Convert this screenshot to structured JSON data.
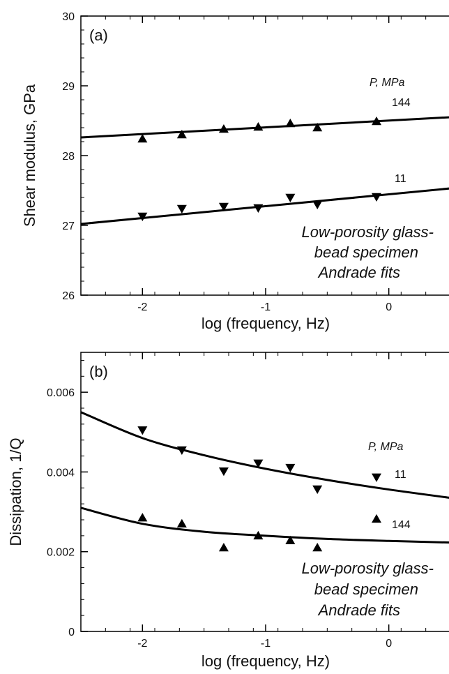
{
  "chart_data": [
    {
      "type": "scatter",
      "panel_label": "(a)",
      "xlabel": "log (frequency, Hz)",
      "ylabel": "Shear modulus, GPa",
      "xlim": [
        -2.5,
        0.5
      ],
      "ylim": [
        26,
        30
      ],
      "xticks": [
        -2,
        -1,
        0
      ],
      "xtick_labels": [
        "-2",
        "-1",
        "0"
      ],
      "yticks": [
        26,
        27,
        28,
        29,
        30
      ],
      "ytick_labels": [
        "26",
        "27",
        "28",
        "29",
        "30"
      ],
      "pressure_heading": "P, MPa",
      "annotation_lines": [
        "Low-porosity glass-",
        "bead specimen",
        "Andrade fits"
      ],
      "series": [
        {
          "name": "144",
          "marker": "triangle-up",
          "x": [
            -2.0,
            -1.68,
            -1.34,
            -1.06,
            -0.8,
            -0.58,
            -0.1
          ],
          "y": [
            28.24,
            28.3,
            28.38,
            28.41,
            28.46,
            28.4,
            28.49
          ],
          "fit": {
            "x": [
              -2.5,
              0.5
            ],
            "y": [
              28.26,
              28.55
            ]
          }
        },
        {
          "name": "11",
          "marker": "triangle-down",
          "x": [
            -2.0,
            -1.68,
            -1.34,
            -1.06,
            -0.8,
            -0.58,
            -0.1
          ],
          "y": [
            27.13,
            27.24,
            27.27,
            27.25,
            27.4,
            27.3,
            27.41
          ],
          "fit": {
            "x": [
              -2.5,
              0.5
            ],
            "y": [
              27.02,
              27.53
            ]
          }
        }
      ]
    },
    {
      "type": "scatter",
      "panel_label": "(b)",
      "xlabel": "log (frequency, Hz)",
      "ylabel": "Dissipation, 1/Q",
      "xlim": [
        -2.5,
        0.5
      ],
      "ylim": [
        0,
        0.007
      ],
      "xticks": [
        -2,
        -1,
        0
      ],
      "xtick_labels": [
        "-2",
        "-1",
        "0"
      ],
      "yticks": [
        0,
        0.002,
        0.004,
        0.006
      ],
      "ytick_labels": [
        "0",
        "0.002",
        "0.004",
        "0.006"
      ],
      "pressure_heading": "P, MPa",
      "annotation_lines": [
        "Low-porosity glass-",
        "bead specimen",
        "Andrade fits"
      ],
      "series": [
        {
          "name": "11",
          "marker": "triangle-down",
          "x": [
            -2.0,
            -1.68,
            -1.34,
            -1.06,
            -0.8,
            -0.58,
            -0.1
          ],
          "y": [
            0.00505,
            0.00455,
            0.00402,
            0.00422,
            0.00411,
            0.00357,
            0.00387
          ],
          "fit": {
            "x": [
              -2.5,
              -2.0,
              -1.5,
              -1.0,
              -0.5,
              0.0,
              0.5
            ],
            "y": [
              0.0055,
              0.00485,
              0.00442,
              0.00408,
              0.0038,
              0.00356,
              0.00335
            ]
          }
        },
        {
          "name": "144",
          "marker": "triangle-up",
          "x": [
            -2.0,
            -1.68,
            -1.34,
            -1.06,
            -0.8,
            -0.58,
            -0.1
          ],
          "y": [
            0.00285,
            0.0027,
            0.0021,
            0.0024,
            0.00228,
            0.0021,
            0.00282
          ],
          "fit": {
            "x": [
              -2.5,
              -2.0,
              -1.5,
              -1.0,
              -0.5,
              0.0,
              0.5
            ],
            "y": [
              0.0031,
              0.0027,
              0.0025,
              0.0024,
              0.00232,
              0.00227,
              0.00223
            ]
          }
        }
      ]
    }
  ]
}
